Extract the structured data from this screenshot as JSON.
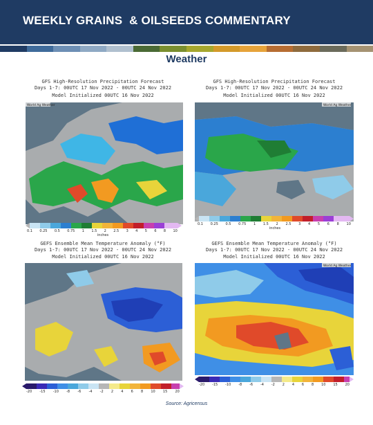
{
  "header": {
    "title": "WEEKLY GRAINS  & OILSEEDS COMMENTARY",
    "bg": "#1f3b63"
  },
  "color_band": [
    "#1f3b63",
    "#3f6b9b",
    "#6d8fb5",
    "#8fa9c4",
    "#b0c0cf",
    "#4a6a35",
    "#7a8f2f",
    "#a6a72d",
    "#d49a2a",
    "#e6a33a",
    "#b76d32",
    "#8f6b3d",
    "#6b6b5b",
    "#a59373"
  ],
  "section_title": "Weather",
  "maps": [
    {
      "title": "GFS High-Resolution Precipitation Forecast",
      "days": "Days 1-7: 00UTC 17 Nov 2022 - 00UTC 24 Nov 2022",
      "init": "Model Initialized 00UTC 16 Nov 2022",
      "credit": "World Ag Weather",
      "scale_ticks": [
        "0.1",
        "0.25",
        "0.5",
        "0.75",
        "1",
        "1.5",
        "2",
        "2.5",
        "3",
        "4",
        "5",
        "6",
        "8",
        "10"
      ],
      "units": "inches"
    },
    {
      "title": "GFS High-Resolution Precipitation Forecast",
      "days": "Days 1-7: 00UTC 17 Nov 2022 - 00UTC 24 Nov 2022",
      "init": "Model Initialized 00UTC 16 Nov 2022",
      "credit": "World Ag Weather",
      "scale_ticks": [
        "0.1",
        "0.25",
        "0.5",
        "0.75",
        "1",
        "1.5",
        "2",
        "2.5",
        "3",
        "4",
        "5",
        "6",
        "8",
        "10"
      ],
      "units": "inches"
    },
    {
      "title": "GEFS Ensemble Mean Temperature Anomaly (°F)",
      "days": "Days 1-7: 00UTC 17 Nov 2022 - 00UTC 24 Nov 2022",
      "init": "Model Initialized 00UTC 16 Nov 2022",
      "credit": "",
      "scale_ticks": [
        "-20",
        "-15",
        "-10",
        "-8",
        "-6",
        "-4",
        "-2",
        "2",
        "4",
        "6",
        "8",
        "10",
        "15",
        "20"
      ],
      "units": ""
    },
    {
      "title": "GEFS Ensemble Mean Temperature Anomaly (°F)",
      "days": "Days 1-7: 00UTC 17 Nov 2022 - 00UTC 24 Nov 2022",
      "init": "Model Initialized 00UTC 16 Nov 2022",
      "credit": "World Ag Weather",
      "scale_ticks": [
        "-20",
        "-15",
        "-10",
        "-8",
        "-6",
        "-4",
        "-2",
        "2",
        "4",
        "6",
        "8",
        "10",
        "15",
        "20"
      ],
      "units": ""
    }
  ],
  "source": "Source: Agricensus"
}
